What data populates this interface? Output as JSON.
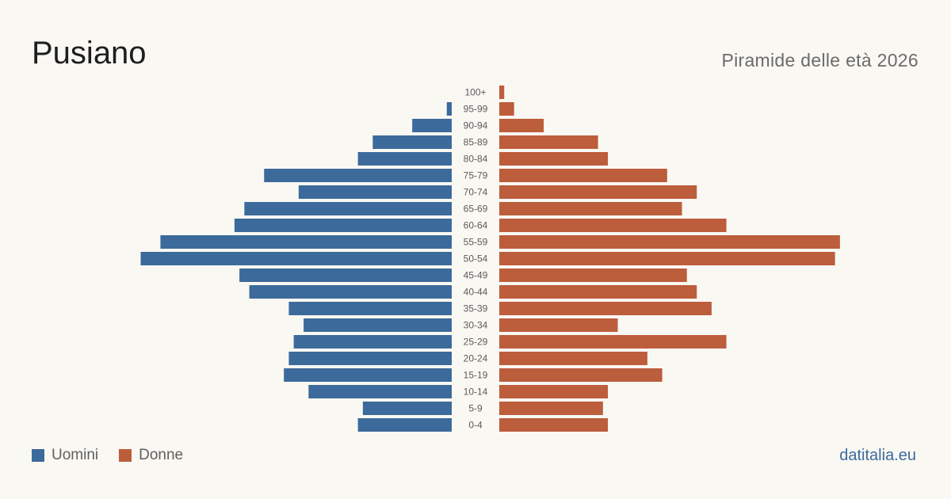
{
  "header": {
    "title": "Pusiano",
    "subtitle": "Piramide delle età 2026"
  },
  "legend": {
    "men_label": "Uomini",
    "women_label": "Donne"
  },
  "brand": "datitalia.eu",
  "colors": {
    "men": "#3c6a9b",
    "women": "#bc5d3c",
    "background": "#faf8f3"
  },
  "chart_data": {
    "type": "bar",
    "orientation": "horizontal-pyramid",
    "categories": [
      "100+",
      "95-99",
      "90-94",
      "85-89",
      "80-84",
      "75-79",
      "70-74",
      "65-69",
      "60-64",
      "55-59",
      "50-54",
      "45-49",
      "40-44",
      "35-39",
      "30-34",
      "25-29",
      "20-24",
      "15-19",
      "10-14",
      "5-9",
      "0-4"
    ],
    "series": [
      {
        "name": "Uomini",
        "values": [
          0,
          1,
          8,
          16,
          19,
          38,
          31,
          42,
          44,
          59,
          63,
          43,
          41,
          33,
          30,
          32,
          33,
          34,
          29,
          18,
          19
        ]
      },
      {
        "name": "Donne",
        "values": [
          1,
          3,
          9,
          20,
          22,
          34,
          40,
          37,
          46,
          69,
          68,
          38,
          40,
          43,
          24,
          46,
          30,
          33,
          22,
          21,
          22
        ]
      }
    ],
    "xlim": [
      0,
      70
    ]
  }
}
